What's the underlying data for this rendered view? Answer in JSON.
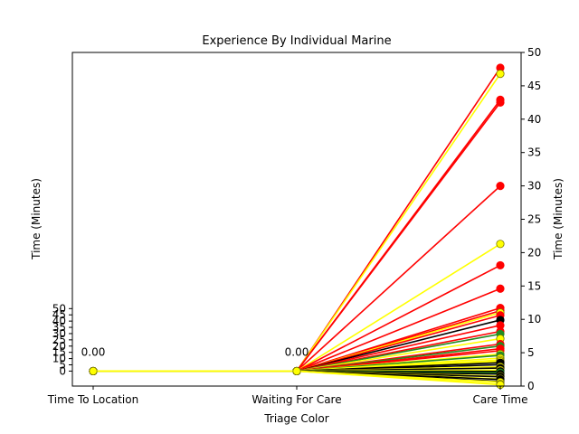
{
  "chart_data": {
    "type": "line",
    "title": "Experience By Individual Marine",
    "xlabel": "Triage Color",
    "ylabel_left": "Time (Minutes)",
    "ylabel_right": "Time (Minutes)",
    "categories": [
      "Time To Location",
      "Waiting For Care",
      "Care Time"
    ],
    "left_yticks": [
      0,
      5,
      10,
      15,
      20,
      25,
      30,
      35,
      40,
      45,
      50
    ],
    "left_ylim": [
      -12,
      255
    ],
    "right_yticks": [
      0,
      5,
      10,
      15,
      20,
      25,
      30,
      35,
      40,
      45,
      50
    ],
    "right_ylim": [
      0,
      50
    ],
    "annotations": [
      {
        "category": "Time To Location",
        "text": "0.00"
      },
      {
        "category": "Waiting For Care",
        "text": "0.00"
      }
    ],
    "grid": false,
    "colors": {
      "red": "#ff0000",
      "yellow": "#ffff00",
      "green": "#228b22",
      "black": "#000000"
    },
    "series": [
      {
        "color": "red",
        "values": [
          0,
          0,
          47.7
        ]
      },
      {
        "color": "yellow",
        "values": [
          0,
          0,
          46.8
        ]
      },
      {
        "color": "red",
        "values": [
          0,
          0,
          42.9
        ]
      },
      {
        "color": "red",
        "values": [
          0,
          0,
          42.5
        ]
      },
      {
        "color": "red",
        "values": [
          0,
          0,
          30.0
        ]
      },
      {
        "color": "yellow",
        "values": [
          0,
          0,
          21.3
        ]
      },
      {
        "color": "red",
        "values": [
          0,
          0,
          18.1
        ]
      },
      {
        "color": "red",
        "values": [
          0,
          0,
          14.6
        ]
      },
      {
        "color": "red",
        "values": [
          0,
          0,
          11.7
        ]
      },
      {
        "color": "red",
        "values": [
          0,
          0,
          11.3
        ]
      },
      {
        "color": "yellow",
        "values": [
          0,
          0,
          11.0
        ]
      },
      {
        "color": "red",
        "values": [
          0,
          0,
          10.6
        ]
      },
      {
        "color": "black",
        "values": [
          0,
          0,
          9.9
        ]
      },
      {
        "color": "red",
        "values": [
          0,
          0,
          9.1
        ]
      },
      {
        "color": "red",
        "values": [
          0,
          0,
          8.2
        ]
      },
      {
        "color": "green",
        "values": [
          0,
          0,
          7.8
        ]
      },
      {
        "color": "yellow",
        "values": [
          0,
          0,
          7.1
        ]
      },
      {
        "color": "red",
        "values": [
          0,
          0,
          6.3
        ]
      },
      {
        "color": "green",
        "values": [
          0,
          0,
          6.0
        ]
      },
      {
        "color": "red",
        "values": [
          0,
          0,
          5.6
        ]
      },
      {
        "color": "red",
        "values": [
          0,
          0,
          5.3
        ]
      },
      {
        "color": "yellow",
        "values": [
          0,
          0,
          4.8
        ]
      },
      {
        "color": "green",
        "values": [
          0,
          0,
          4.6
        ]
      },
      {
        "color": "yellow",
        "values": [
          0,
          0,
          4.2
        ]
      },
      {
        "color": "yellow",
        "values": [
          0,
          0,
          3.9
        ]
      },
      {
        "color": "yellow",
        "values": [
          0,
          0,
          3.7
        ]
      },
      {
        "color": "black",
        "values": [
          0,
          0,
          3.5
        ]
      },
      {
        "color": "black",
        "values": [
          0,
          0,
          3.2
        ]
      },
      {
        "color": "yellow",
        "values": [
          0,
          0,
          2.9
        ]
      },
      {
        "color": "black",
        "values": [
          0,
          0,
          2.7
        ]
      },
      {
        "color": "yellow",
        "values": [
          0,
          0,
          2.4
        ]
      },
      {
        "color": "black",
        "values": [
          0,
          0,
          2.2
        ]
      },
      {
        "color": "green",
        "values": [
          0,
          0,
          2.0
        ]
      },
      {
        "color": "black",
        "values": [
          0,
          0,
          1.8
        ]
      },
      {
        "color": "yellow",
        "values": [
          0,
          0,
          1.5
        ]
      },
      {
        "color": "black",
        "values": [
          0,
          0,
          1.4
        ]
      },
      {
        "color": "yellow",
        "values": [
          0,
          0,
          1.1
        ]
      },
      {
        "color": "black",
        "values": [
          0,
          0,
          1.0
        ]
      },
      {
        "color": "black",
        "values": [
          0,
          0,
          0.7
        ]
      },
      {
        "color": "yellow",
        "values": [
          0,
          0,
          0.6
        ]
      },
      {
        "color": "yellow",
        "values": [
          0,
          0,
          0.3
        ]
      },
      {
        "color": "yellow",
        "values": [
          0,
          0,
          0.2
        ]
      }
    ]
  }
}
